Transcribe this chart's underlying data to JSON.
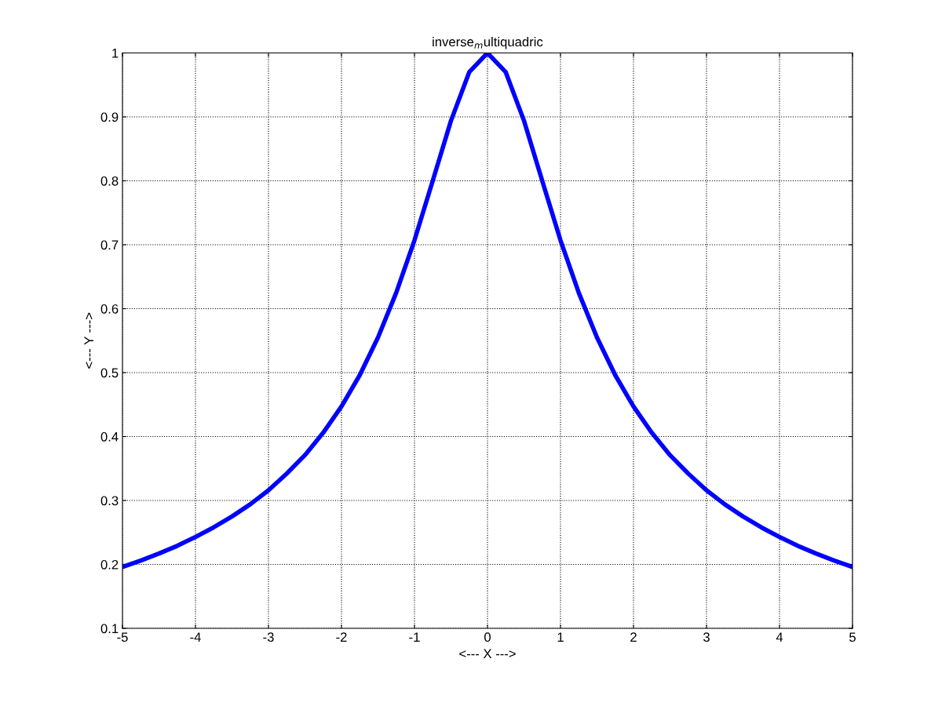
{
  "chart_data": {
    "type": "line",
    "title": "inverse$_{m}$ultiquadric",
    "xlabel": "<--- X --->",
    "ylabel": "<--- Y --->",
    "x": [
      -5,
      -4.75,
      -4.5,
      -4.25,
      -4,
      -3.75,
      -3.5,
      -3.25,
      -3,
      -2.75,
      -2.5,
      -2.25,
      -2,
      -1.75,
      -1.5,
      -1.25,
      -1,
      -0.75,
      -0.5,
      -0.25,
      0,
      0.25,
      0.5,
      0.75,
      1,
      1.25,
      1.5,
      1.75,
      2,
      2.25,
      2.5,
      2.75,
      3,
      3.25,
      3.5,
      3.75,
      4,
      4.25,
      4.5,
      4.75,
      5
    ],
    "series": [
      {
        "color": "#0000ff",
        "values": [
          0.196,
          0.206,
          0.217,
          0.229,
          0.243,
          0.258,
          0.275,
          0.294,
          0.316,
          0.342,
          0.371,
          0.406,
          0.447,
          0.496,
          0.555,
          0.625,
          0.707,
          0.8,
          0.894,
          0.97,
          1,
          0.97,
          0.894,
          0.8,
          0.707,
          0.625,
          0.555,
          0.496,
          0.447,
          0.406,
          0.371,
          0.342,
          0.316,
          0.294,
          0.275,
          0.258,
          0.243,
          0.229,
          0.217,
          0.206,
          0.196
        ]
      }
    ],
    "xlim": [
      -5,
      5
    ],
    "ylim": [
      0.1,
      1
    ],
    "xticks": [
      -5,
      -4,
      -3,
      -2,
      -1,
      0,
      1,
      2,
      3,
      4,
      5
    ],
    "yticks": [
      0.1,
      0.2,
      0.3,
      0.4,
      0.5,
      0.6,
      0.7,
      0.8,
      0.9,
      1
    ],
    "grid": true,
    "line_style": "solid"
  }
}
